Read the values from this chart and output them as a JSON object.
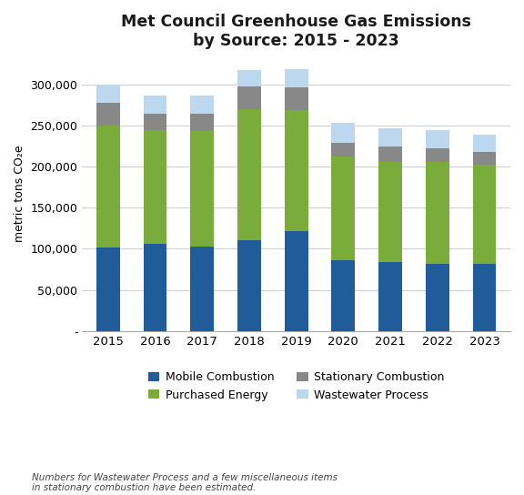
{
  "years": [
    "2015",
    "2016",
    "2017",
    "2018",
    "2019",
    "2020",
    "2021",
    "2022",
    "2023"
  ],
  "mobile_combustion": [
    102000,
    106000,
    103000,
    110000,
    121000,
    86000,
    84000,
    81000,
    81000
  ],
  "purchased_energy": [
    148000,
    138000,
    140000,
    160000,
    148000,
    126000,
    122000,
    124000,
    121000
  ],
  "stationary_combustion": [
    27000,
    20000,
    21000,
    27000,
    27000,
    17000,
    18000,
    17000,
    16000
  ],
  "wastewater_process": [
    22000,
    22000,
    22000,
    20000,
    22000,
    24000,
    22000,
    22000,
    21000
  ],
  "colors": {
    "mobile_combustion": "#1F5C99",
    "purchased_energy": "#7AAC3B",
    "stationary_combustion": "#888888",
    "wastewater_process": "#BDD7EE"
  },
  "title_line1": "Met Council Greenhouse Gas Emissions",
  "title_line2": "by Source: 2015 - 2023",
  "ylabel": "metric tons CO₂e",
  "ylim": [
    0,
    335000
  ],
  "yticks": [
    0,
    50000,
    100000,
    150000,
    200000,
    250000,
    300000
  ],
  "footnote": "Numbers for Wastewater Process and a few miscellaneous items\nin stationary combustion have been estimated.",
  "legend_labels": [
    "Mobile Combustion",
    "Purchased Energy",
    "Stationary Combustion",
    "Wastewater Process"
  ],
  "background_color": "#ffffff"
}
